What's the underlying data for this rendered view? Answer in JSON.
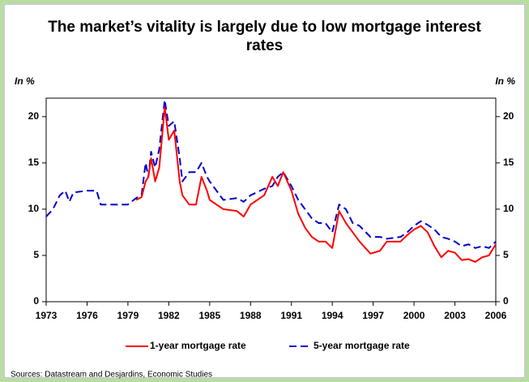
{
  "chart_data": {
    "type": "line",
    "title": "The market’s vitality is largely due to low mortgage interest rates",
    "y_label": "In %",
    "y2_label": "In %",
    "source": "Sources: Datastream and Desjardins, Economic Studies",
    "x": [
      1973,
      1973.5,
      1974,
      1974.4,
      1974.7,
      1975,
      1976,
      1976.7,
      1977,
      1979,
      1979.6,
      1980,
      1980.3,
      1980.5,
      1980.7,
      1981,
      1981.3,
      1981.7,
      1982,
      1982.4,
      1982.8,
      1983,
      1983.5,
      1984,
      1984.4,
      1984.8,
      1985,
      1986,
      1987,
      1987.5,
      1988,
      1989,
      1989.6,
      1990,
      1990.4,
      1991,
      1991.5,
      1992,
      1992.5,
      1993,
      1993.5,
      1994,
      1994.5,
      1995,
      1995.5,
      1996,
      1996.8,
      1997.5,
      1998,
      1999,
      1999.5,
      2000,
      2000.5,
      2001,
      2001.5,
      2002,
      2002.5,
      2003,
      2003.5,
      2004,
      2004.5,
      2005,
      2005.5,
      2006
    ],
    "series": [
      {
        "name": "1-year mortgage rate",
        "color": "#ff0000",
        "dash": false,
        "values": [
          null,
          null,
          null,
          null,
          null,
          null,
          null,
          null,
          null,
          null,
          11,
          11.3,
          13,
          13.5,
          15.5,
          13,
          14.5,
          21,
          17.5,
          18.5,
          13,
          11.5,
          10.5,
          10.5,
          13.5,
          12,
          11,
          10,
          9.8,
          9.2,
          10.5,
          11.5,
          13.5,
          12.5,
          14,
          12,
          9.5,
          8,
          7,
          6.5,
          6.5,
          5.8,
          9.8,
          8.5,
          7.5,
          6.5,
          5.2,
          5.5,
          6.5,
          6.5,
          7.2,
          7.8,
          8.2,
          7.5,
          6,
          4.8,
          5.5,
          5.3,
          4.5,
          4.6,
          4.3,
          4.8,
          5,
          6.2
        ]
      },
      {
        "name": "5-year mortgage rate",
        "color": "#0000cc",
        "dash": true,
        "values": [
          9.2,
          10,
          11.5,
          12,
          10.8,
          11.8,
          12,
          12,
          10.5,
          10.5,
          11.2,
          11.5,
          15,
          13.5,
          16.2,
          14.5,
          16.5,
          21.8,
          19,
          19.5,
          15.5,
          13,
          14,
          14,
          15,
          13.5,
          13,
          11,
          11.2,
          10.8,
          11.5,
          12.2,
          12.5,
          13.5,
          14,
          12.5,
          11,
          10,
          9,
          8.5,
          8.5,
          7.5,
          10.5,
          10,
          8.5,
          8.2,
          7,
          7,
          6.8,
          7,
          7.5,
          8.2,
          8.7,
          8.3,
          7.8,
          7,
          6.8,
          6.5,
          6,
          6.2,
          5.8,
          6,
          5.8,
          6.5
        ]
      }
    ],
    "xlim": [
      1973,
      2006
    ],
    "xticks": [
      1973,
      1976,
      1979,
      1982,
      1985,
      1988,
      1991,
      1994,
      1997,
      2000,
      2003,
      2006
    ],
    "ylim": [
      0,
      22
    ],
    "yticks": [
      0,
      5,
      10,
      15,
      20
    ],
    "y2lim": [
      0,
      22
    ],
    "y2ticks": [
      0,
      5,
      10,
      15,
      20
    ],
    "grid": false,
    "legend": "bottom"
  }
}
